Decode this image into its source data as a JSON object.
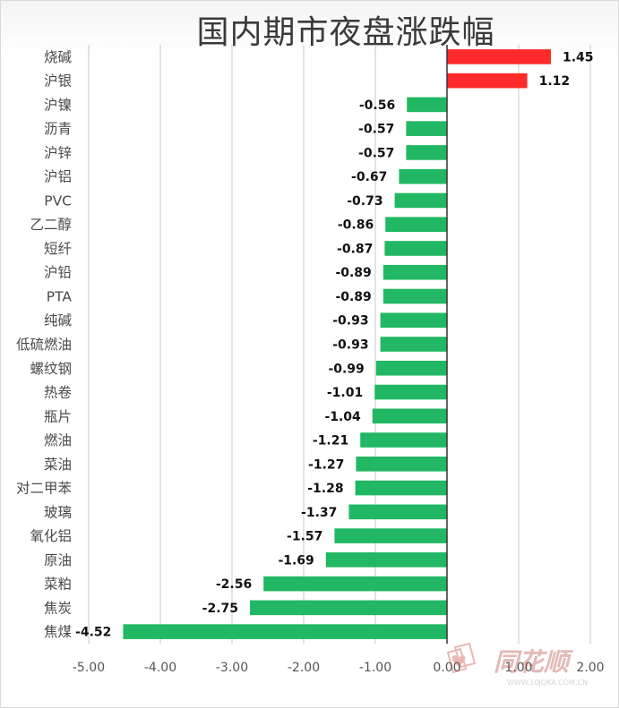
{
  "chart_data": {
    "type": "bar",
    "orientation": "horizontal",
    "title": "国内期市夜盘涨跌幅",
    "categories": [
      "烧碱",
      "沪银",
      "沪镍",
      "沥青",
      "沪锌",
      "沪铝",
      "PVC",
      "乙二醇",
      "短纤",
      "沪铅",
      "PTA",
      "纯碱",
      "低硫燃油",
      "螺纹钢",
      "热卷",
      "瓶片",
      "燃油",
      "菜油",
      "对二甲苯",
      "玻璃",
      "氧化铝",
      "原油",
      "菜粕",
      "焦炭",
      "焦煤"
    ],
    "values": [
      1.45,
      1.12,
      -0.56,
      -0.57,
      -0.57,
      -0.67,
      -0.73,
      -0.86,
      -0.87,
      -0.89,
      -0.89,
      -0.93,
      -0.93,
      -0.99,
      -1.01,
      -1.04,
      -1.21,
      -1.27,
      -1.28,
      -1.37,
      -1.57,
      -1.69,
      -2.56,
      -2.75,
      -4.52
    ],
    "value_labels": [
      "1.45",
      "1.12",
      "-0.56",
      "-0.57",
      "-0.57",
      "-0.67",
      "-0.73",
      "-0.86",
      "-0.87",
      "-0.89",
      "-0.89",
      "-0.93",
      "-0.93",
      "-0.99",
      "-1.01",
      "-1.04",
      "-1.21",
      "-1.27",
      "-1.28",
      "-1.37",
      "-1.57",
      "-1.69",
      "-2.56",
      "-2.75",
      "-4.52"
    ],
    "xlim": [
      -5,
      2
    ],
    "x_ticks": [
      -5,
      -4,
      -3,
      -2,
      -1,
      0,
      1,
      2
    ],
    "x_tick_labels": [
      "-5.00",
      "-4.00",
      "-3.00",
      "-2.00",
      "-1.00",
      "0.00",
      "1.00",
      "2.00"
    ],
    "xlabel": "",
    "ylabel": "",
    "grid": "vertical",
    "colors": {
      "positive": "#ff2a2a",
      "negative": "#22b863",
      "gridline": "#c8c8c8",
      "zero_axis": "#333333"
    }
  },
  "watermark": {
    "logo_text": "同花顺",
    "url_text": "WWW.10JQKA.COM.CN",
    "icon": "card-suit-logo-icon"
  }
}
